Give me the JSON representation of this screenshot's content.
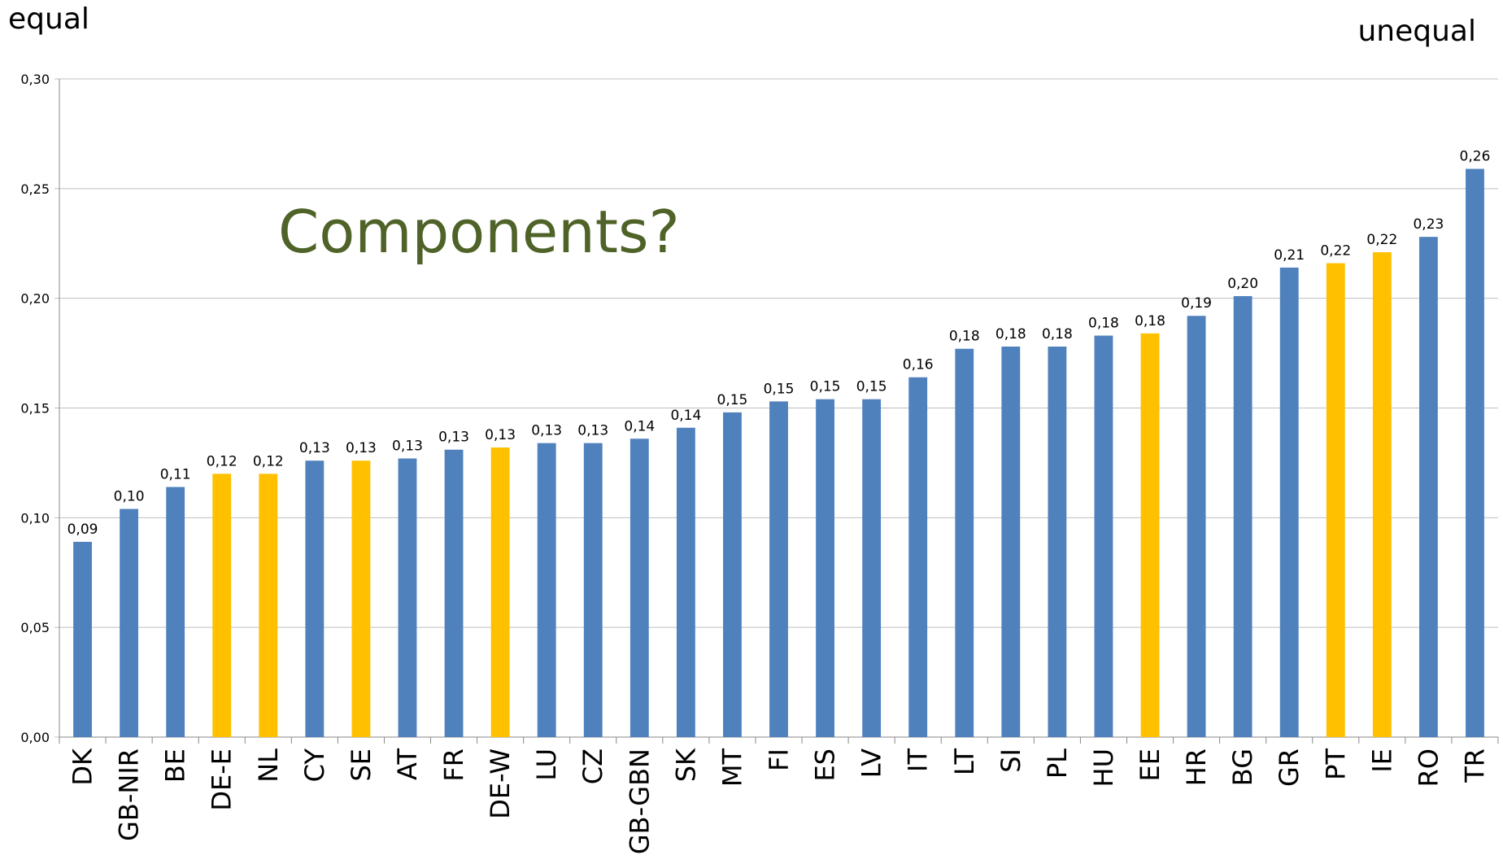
{
  "chart_data": {
    "type": "bar",
    "left_label": "equal",
    "right_label": "unequal",
    "annotation": "Components?",
    "categories": [
      "DK",
      "GB-NIR",
      "BE",
      "DE-E",
      "NL",
      "CY",
      "SE",
      "AT",
      "FR",
      "DE-W",
      "LU",
      "CZ",
      "GB-GBN",
      "SK",
      "MT",
      "FI",
      "ES",
      "LV",
      "IT",
      "LT",
      "SI",
      "PL",
      "HU",
      "EE",
      "HR",
      "BG",
      "GR",
      "PT",
      "IE",
      "RO",
      "TR"
    ],
    "values": [
      0.089,
      0.104,
      0.114,
      0.12,
      0.12,
      0.126,
      0.126,
      0.127,
      0.131,
      0.132,
      0.134,
      0.134,
      0.136,
      0.141,
      0.148,
      0.153,
      0.154,
      0.154,
      0.164,
      0.177,
      0.178,
      0.178,
      0.183,
      0.184,
      0.192,
      0.201,
      0.214,
      0.216,
      0.221,
      0.228,
      0.259
    ],
    "value_labels": [
      "0,09",
      "0,10",
      "0,11",
      "0,12",
      "0,12",
      "0,13",
      "0,13",
      "0,13",
      "0,13",
      "0,13",
      "0,13",
      "0,13",
      "0,14",
      "0,14",
      "0,15",
      "0,15",
      "0,15",
      "0,15",
      "0,16",
      "0,18",
      "0,18",
      "0,18",
      "0,18",
      "0,18",
      "0,19",
      "0,20",
      "0,21",
      "0,22",
      "0,22",
      "0,23",
      "0,26"
    ],
    "colors": [
      "#4f81bd",
      "#4f81bd",
      "#4f81bd",
      "#ffc000",
      "#ffc000",
      "#4f81bd",
      "#ffc000",
      "#4f81bd",
      "#4f81bd",
      "#ffc000",
      "#4f81bd",
      "#4f81bd",
      "#4f81bd",
      "#4f81bd",
      "#4f81bd",
      "#4f81bd",
      "#4f81bd",
      "#4f81bd",
      "#4f81bd",
      "#4f81bd",
      "#4f81bd",
      "#4f81bd",
      "#4f81bd",
      "#ffc000",
      "#4f81bd",
      "#4f81bd",
      "#4f81bd",
      "#ffc000",
      "#ffc000",
      "#4f81bd",
      "#4f81bd"
    ],
    "ylim": [
      0,
      0.3
    ],
    "yticks": [
      {
        "value": 0,
        "label": "0,00"
      },
      {
        "value": 0.05,
        "label": "0,05"
      },
      {
        "value": 0.1,
        "label": "0,10"
      },
      {
        "value": 0.15,
        "label": "0,15"
      },
      {
        "value": 0.2,
        "label": "0,20"
      },
      {
        "value": 0.25,
        "label": "0,25"
      },
      {
        "value": 0.3,
        "label": "0,30"
      }
    ],
    "grid": true
  }
}
